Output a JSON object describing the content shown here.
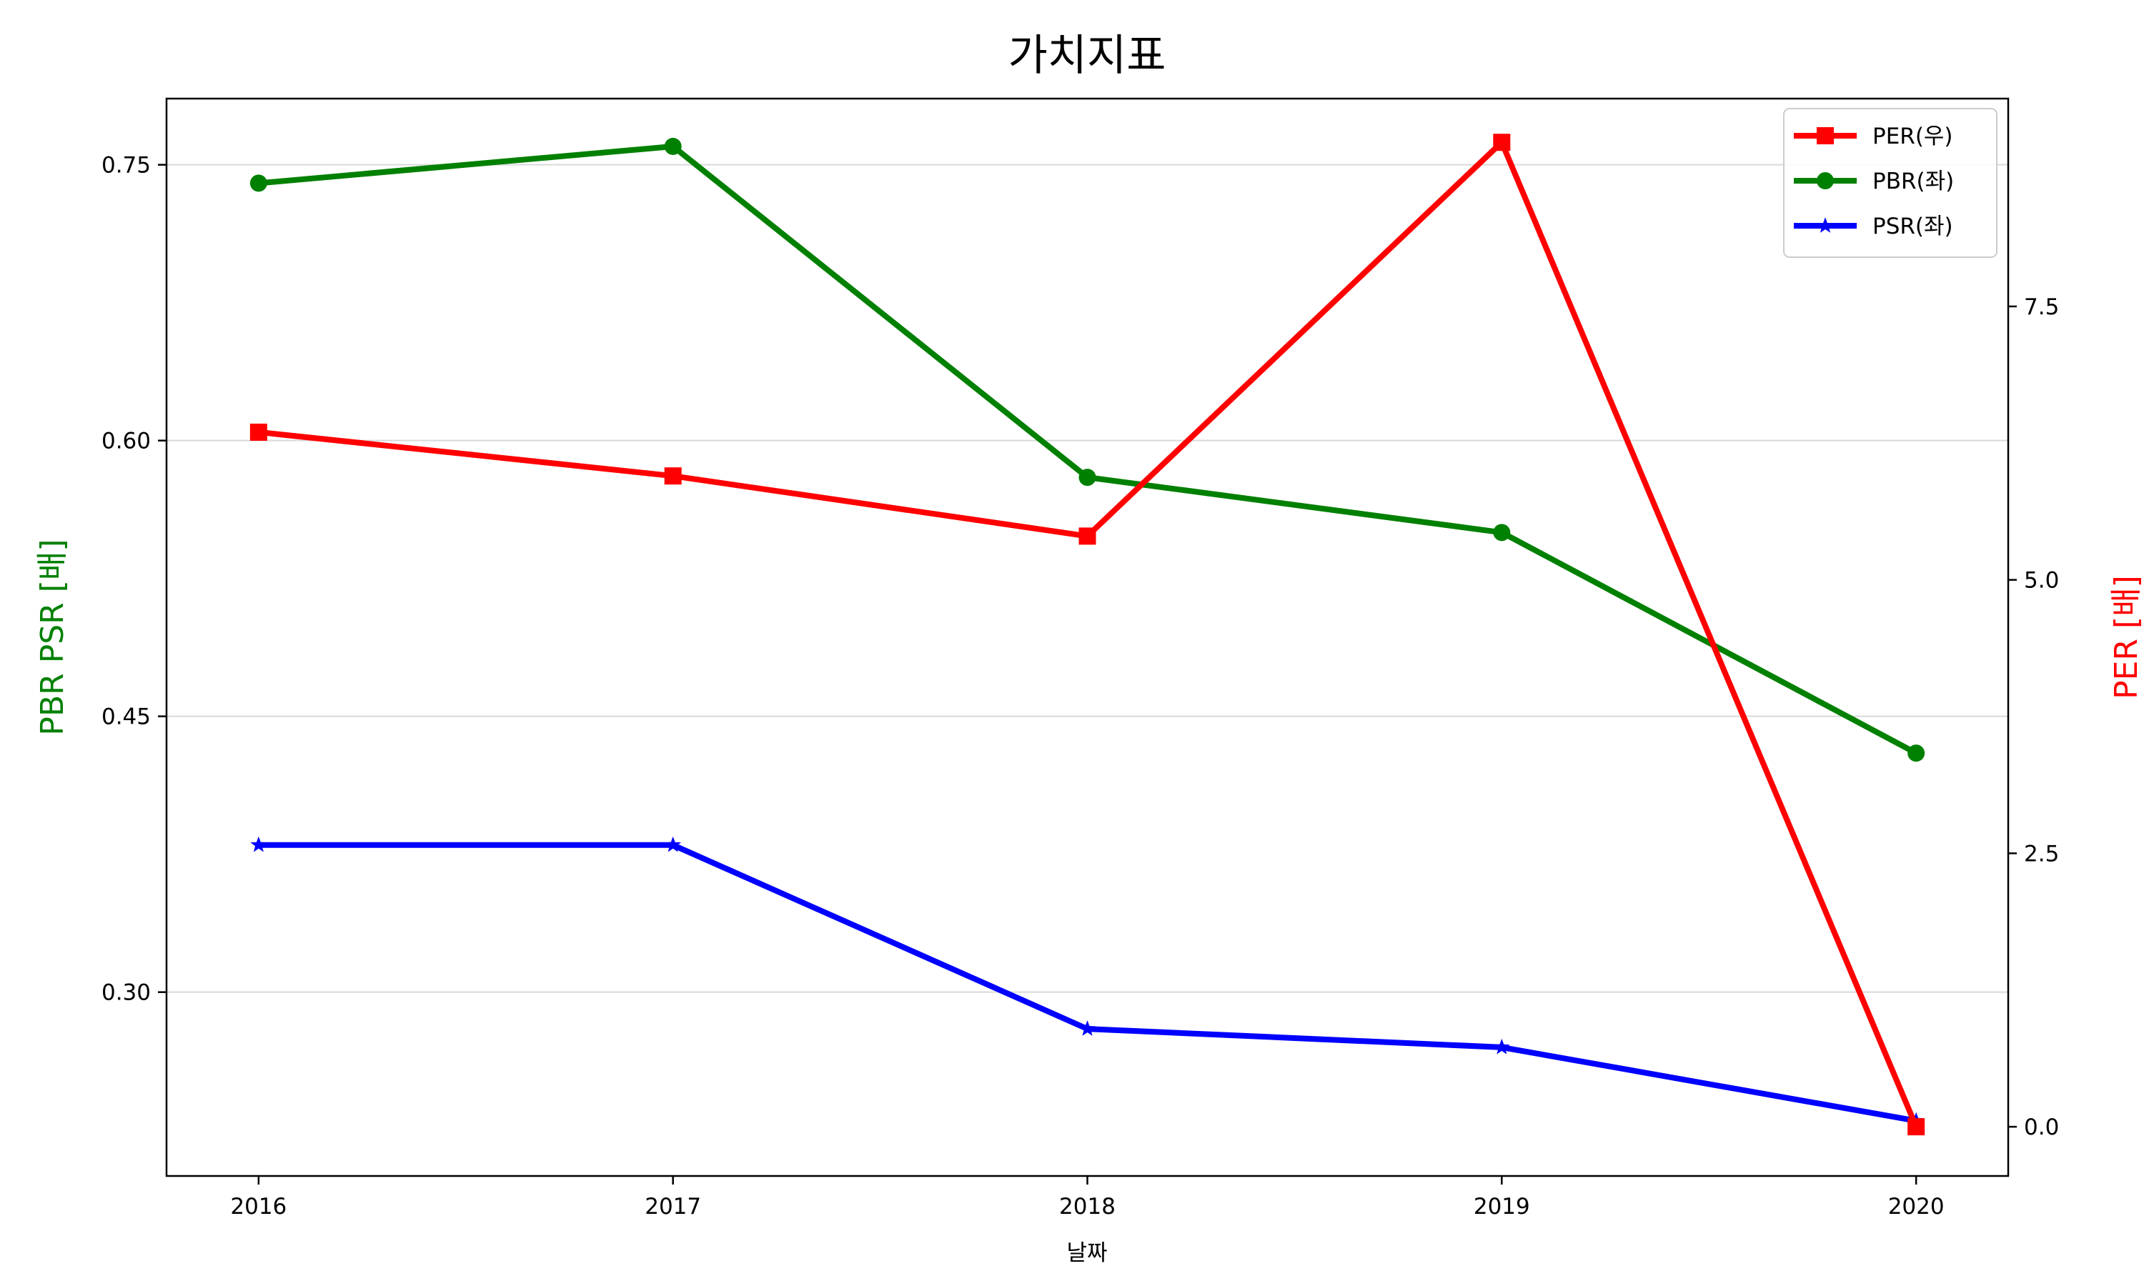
{
  "chart_data": {
    "type": "line",
    "title": "가치지표",
    "xlabel": "날짜",
    "ylabel_left": "PBR PSR [배]",
    "ylabel_right": "PER [배]",
    "categories": [
      "2016",
      "2017",
      "2018",
      "2019",
      "2020"
    ],
    "yticks_left": [
      "0.30",
      "0.45",
      "0.60",
      "0.75"
    ],
    "yticks_right": [
      "0.0",
      "2.5",
      "5.0",
      "7.5"
    ],
    "ylim_left": [
      0.2,
      0.786
    ],
    "ylim_right": [
      -0.45,
      9.4
    ],
    "grid": "horizontal (left axis)",
    "legend_position": "top-right",
    "series": [
      {
        "name": "PER(우)",
        "axis": "right",
        "color": "#ff0000",
        "marker": "square",
        "values": [
          6.35,
          5.95,
          5.4,
          9.0,
          0.0
        ]
      },
      {
        "name": "PBR(좌)",
        "axis": "left",
        "color": "#008000",
        "marker": "circle",
        "values": [
          0.74,
          0.76,
          0.58,
          0.55,
          0.43
        ]
      },
      {
        "name": "PSR(좌)",
        "axis": "left",
        "color": "#0000ff",
        "marker": "star",
        "values": [
          0.38,
          0.38,
          0.28,
          0.27,
          0.23
        ]
      }
    ]
  }
}
